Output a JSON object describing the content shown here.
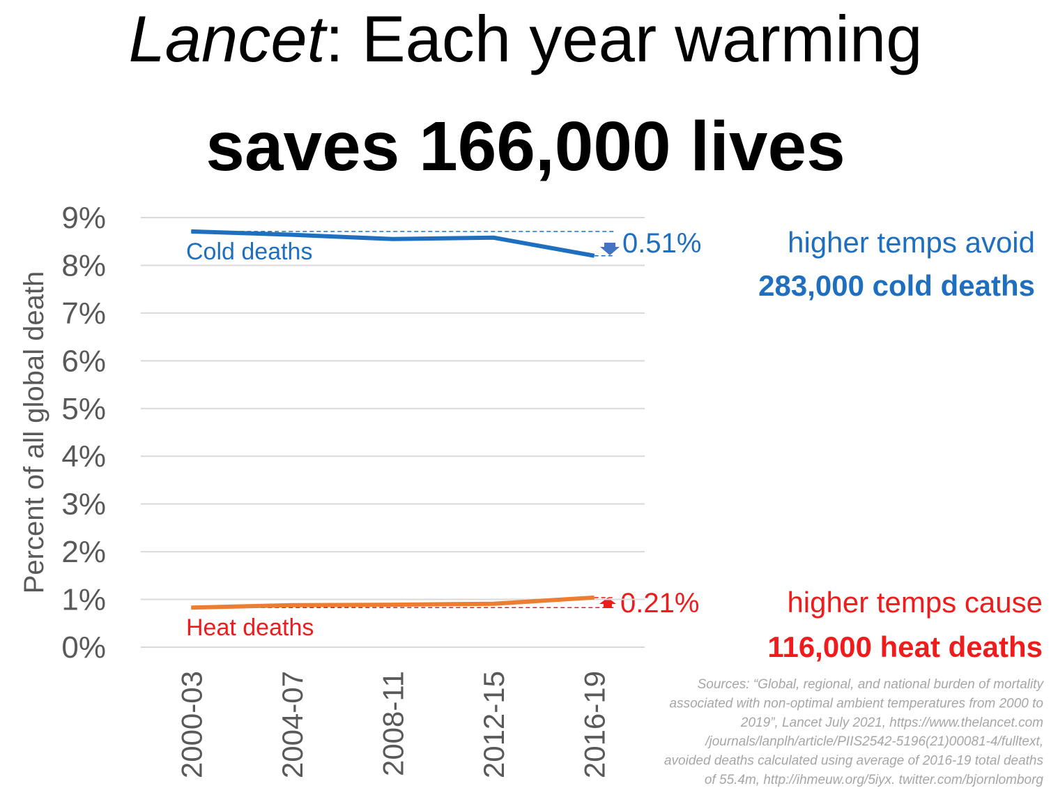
{
  "chart_data": {
    "type": "line",
    "title_italic": "Lancet",
    "title_rest": ": Each year warming",
    "subtitle": "saves 166,000 lives",
    "y_label": "Percent of all global death",
    "categories": [
      "2000-03",
      "2004-07",
      "2008-11",
      "2012-15",
      "2016-19"
    ],
    "series": [
      {
        "name": "Cold deaths",
        "color": "#1f6fc0",
        "label_color": "#1f6fc0",
        "values": [
          8.71,
          8.64,
          8.55,
          8.58,
          8.2
        ]
      },
      {
        "name": "Heat deaths",
        "color": "#ed7d31",
        "label_color": "#ee1c1c",
        "values": [
          0.83,
          0.88,
          0.89,
          0.91,
          1.04
        ]
      }
    ],
    "ylim": [
      0,
      9
    ],
    "yticks": [
      {
        "value": 0,
        "label": "0%"
      },
      {
        "value": 1,
        "label": "1%"
      },
      {
        "value": 2,
        "label": "2%"
      },
      {
        "value": 3,
        "label": "3%"
      },
      {
        "value": 4,
        "label": "4%"
      },
      {
        "value": 5,
        "label": "5%"
      },
      {
        "value": 6,
        "label": "6%"
      },
      {
        "value": 7,
        "label": "7%"
      },
      {
        "value": 8,
        "label": "8%"
      },
      {
        "value": 9,
        "label": "9%"
      }
    ],
    "grid": true,
    "annotations": {
      "cold_change": "0.51%",
      "cold_line1": "higher temps avoid",
      "cold_line2": "283,000 cold deaths",
      "heat_change": "0.21%",
      "heat_line1": "higher temps cause",
      "heat_line2": "116,000 heat deaths"
    },
    "source": [
      "Sources: “Global, regional, and national burden of mortality",
      "associated with non-optimal ambient temperatures from 2000 to",
      "2019”, Lancet July 2021, https://www.thelancet.com",
      "/journals/lanplh/article/PIIS2542-5196(21)00081-4/fulltext,",
      "avoided deaths calculated using average of 2016-19 total deaths",
      "of 55.4m, http://ihmeuw.org/5iyx. twitter.com/bjornlomborg"
    ]
  }
}
